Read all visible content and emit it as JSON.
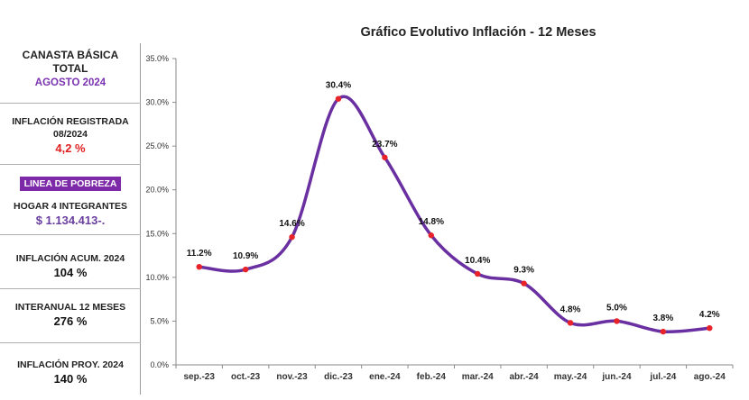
{
  "sidebar": {
    "canasta": {
      "line1": "CANASTA BÁSICA",
      "line2": "TOTAL",
      "period": "AGOSTO 2024"
    },
    "inflacion_registrada": {
      "label1": "INFLACIÓN REGISTRADA",
      "label2": "08/2024",
      "value": "4,2 %"
    },
    "pobreza": {
      "badge": "LINEA DE POBREZA",
      "label": "HOGAR 4 INTEGRANTES",
      "value": "$ 1.134.413-."
    },
    "acumulada": {
      "label": "INFLACIÓN ACUM. 2024",
      "value": "104 %"
    },
    "interanual": {
      "label": "INTERANUAL 12 MESES",
      "value": "276 %"
    },
    "proyectada": {
      "label": "INFLACIÓN PROY. 2024",
      "value": "140 %"
    }
  },
  "colors": {
    "line": "#6a2fa0",
    "point": "#e8232a",
    "accent": "#7d2aa8"
  },
  "chart_data": {
    "type": "line",
    "title": "Gráfico Evolutivo Inflación - 12 Meses",
    "categories": [
      "sep.-23",
      "oct.-23",
      "nov.-23",
      "dic.-23",
      "ene.-24",
      "feb.-24",
      "mar.-24",
      "abr.-24",
      "may.-24",
      "jun.-24",
      "jul.-24",
      "ago.-24"
    ],
    "values": [
      11.2,
      10.9,
      14.6,
      30.4,
      23.7,
      14.8,
      10.4,
      9.3,
      4.8,
      5.0,
      3.8,
      4.2
    ],
    "labels": [
      "11.2%",
      "10.9%",
      "14.6%",
      "30.4%",
      "23.7%",
      "14.8%",
      "10.4%",
      "9.3%",
      "4.8%",
      "5.0%",
      "3.8%",
      "4.2%"
    ],
    "yticks": [
      "0.0%",
      "5.0%",
      "10.0%",
      "15.0%",
      "20.0%",
      "25.0%",
      "30.0%",
      "35.0%"
    ],
    "ylim": [
      0,
      35
    ],
    "xlabel": "",
    "ylabel": "",
    "grid": false
  }
}
